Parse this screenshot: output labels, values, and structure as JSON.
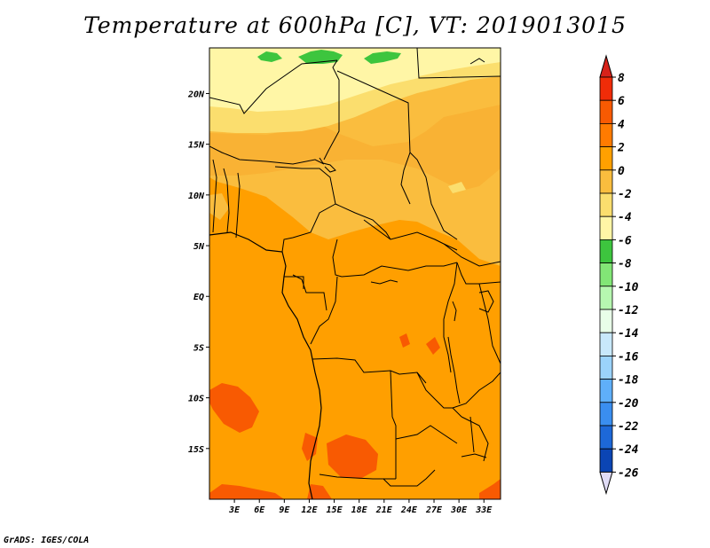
{
  "title": "Temperature at 600hPa [C], VT: 2019013015",
  "footer": "GrADS: IGES/COLA",
  "map": {
    "lat_labels": [
      {
        "label": "20N",
        "lat": 20
      },
      {
        "label": "15N",
        "lat": 15
      },
      {
        "label": "10N",
        "lat": 10
      },
      {
        "label": "5N",
        "lat": 5
      },
      {
        "label": "EQ",
        "lat": 0
      },
      {
        "label": "5S",
        "lat": -5
      },
      {
        "label": "10S",
        "lat": -10
      },
      {
        "label": "15S",
        "lat": -15
      }
    ],
    "lon_labels": [
      {
        "label": "3E",
        "lon": 3
      },
      {
        "label": "6E",
        "lon": 6
      },
      {
        "label": "9E",
        "lon": 9
      },
      {
        "label": "12E",
        "lon": 12
      },
      {
        "label": "15E",
        "lon": 15
      },
      {
        "label": "18E",
        "lon": 18
      },
      {
        "label": "21E",
        "lon": 21
      },
      {
        "label": "24E",
        "lon": 24
      },
      {
        "label": "27E",
        "lon": 27
      },
      {
        "label": "30E",
        "lon": 30
      },
      {
        "label": "33E",
        "lon": 33
      }
    ],
    "lat_range": [
      -20,
      24.5
    ],
    "lon_range": [
      0,
      35
    ]
  },
  "colorbar": {
    "levels": [
      "8",
      "6",
      "4",
      "2",
      "0",
      "-2",
      "-4",
      "-6",
      "-8",
      "-10",
      "-12",
      "-14",
      "-16",
      "-18",
      "-20",
      "-22",
      "-24",
      "-26"
    ],
    "colors": [
      "#f02c08",
      "#f85a02",
      "#ff7b00",
      "#ffa000",
      "#fabd3e",
      "#fbde6e",
      "#fff6a6",
      "#3dc53e",
      "#82e676",
      "#b6f7b0",
      "#e8fee8",
      "#c8e8fb",
      "#9bd3fb",
      "#5faffa",
      "#3a8ef0",
      "#1d68d8",
      "#0b45b4",
      "#07208a",
      "#0b0a5c"
    ],
    "top_color": "#d6221a",
    "bottom_color": "#e0dcf6"
  }
}
